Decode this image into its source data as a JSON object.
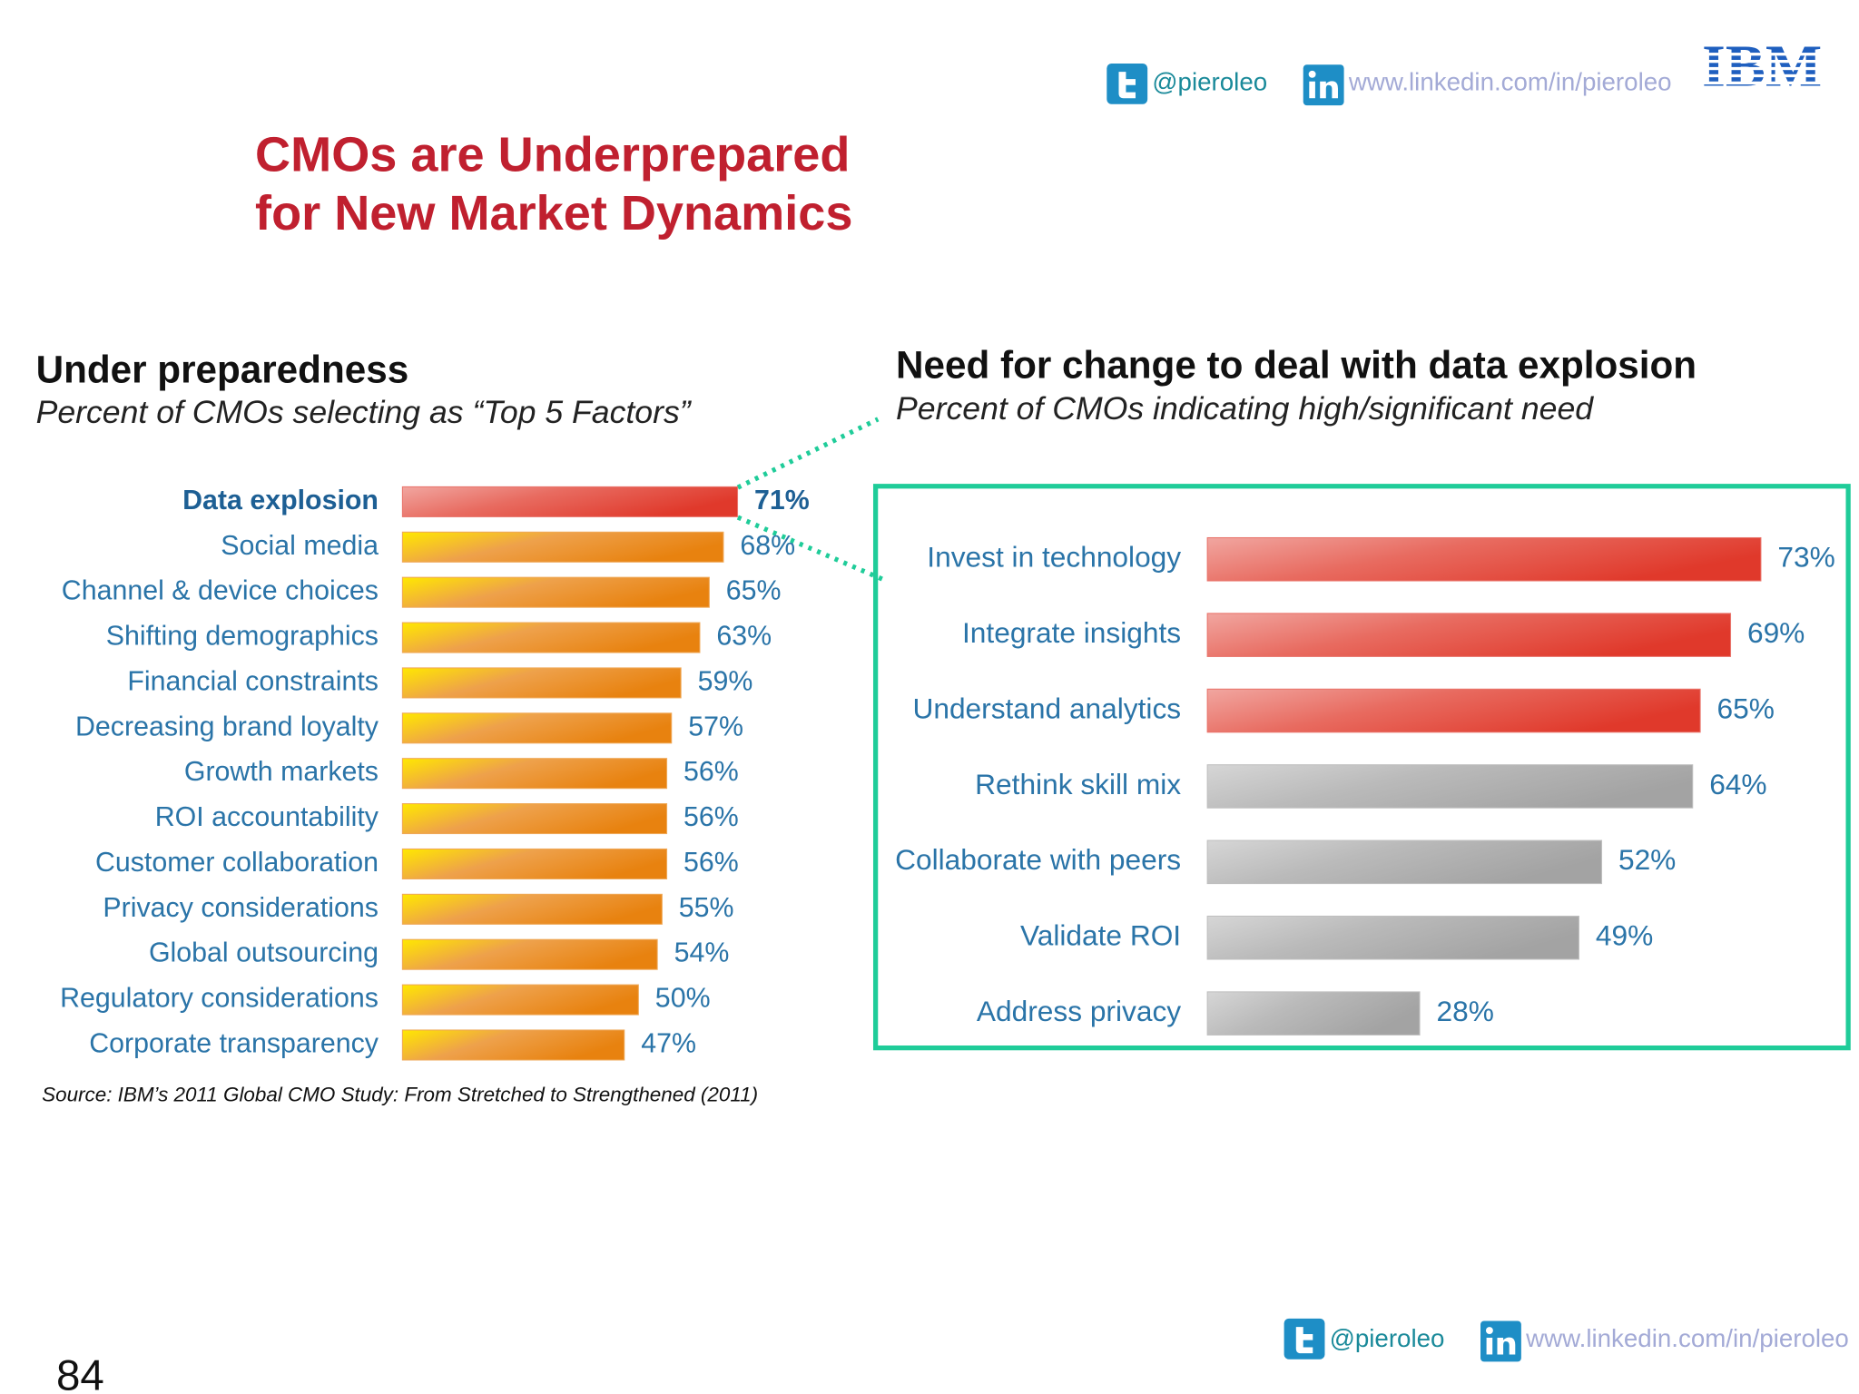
{
  "header": {
    "twitter": "@pieroleo",
    "linkedin": "www.linkedin.com/in/pieroleo",
    "logo": "IBM"
  },
  "title": [
    "CMOs are Underprepared",
    "for New Market Dynamics"
  ],
  "chart_data": [
    {
      "type": "bar",
      "orientation": "horizontal",
      "title": "Under preparedness",
      "subtitle": "Percent of CMOs selecting as “Top 5 Factors”",
      "categories": [
        "Data explosion",
        "Social media",
        "Channel & device choices",
        "Shifting demographics",
        "Financial constraints",
        "Decreasing brand loyalty",
        "Growth markets",
        "ROI accountability",
        "Customer collaboration",
        "Privacy considerations",
        "Global outsourcing",
        "Regulatory considerations",
        "Corporate transparency"
      ],
      "values": [
        71,
        68,
        65,
        63,
        59,
        57,
        56,
        56,
        56,
        55,
        54,
        50,
        47
      ],
      "value_labels": [
        "71%",
        "68%",
        "65%",
        "63%",
        "59%",
        "57%",
        "56%",
        "56%",
        "56%",
        "55%",
        "54%",
        "50%",
        "47%"
      ],
      "colors": [
        "#e0392b",
        "#e8820f",
        "#e8820f",
        "#e8820f",
        "#e8820f",
        "#e8820f",
        "#e8820f",
        "#e8820f",
        "#e8820f",
        "#e8820f",
        "#e8820f",
        "#e8820f",
        "#e8820f"
      ]
    },
    {
      "type": "bar",
      "orientation": "horizontal",
      "title": "Need for change to deal with data explosion",
      "subtitle": "Percent of CMOs indicating high/significant need",
      "categories": [
        "Invest in technology",
        "Integrate insights",
        "Understand analytics",
        "Rethink skill mix",
        "Collaborate with peers",
        "Validate ROI",
        "Address privacy"
      ],
      "values": [
        73,
        69,
        65,
        64,
        52,
        49,
        28
      ],
      "value_labels": [
        "73%",
        "69%",
        "65%",
        "64%",
        "52%",
        "49%",
        "28%"
      ],
      "colors": [
        "#e0392b",
        "#e0392b",
        "#e0392b",
        "#a3a3a3",
        "#a3a3a3",
        "#a3a3a3",
        "#a3a3a3"
      ]
    }
  ],
  "source": "Source: IBM’s 2011 Global CMO Study: From Stretched to Strengthened (2011)",
  "footer": {
    "twitter": "@pieroleo",
    "linkedin": "www.linkedin.com/in/pieroleo"
  },
  "page_number": "84"
}
